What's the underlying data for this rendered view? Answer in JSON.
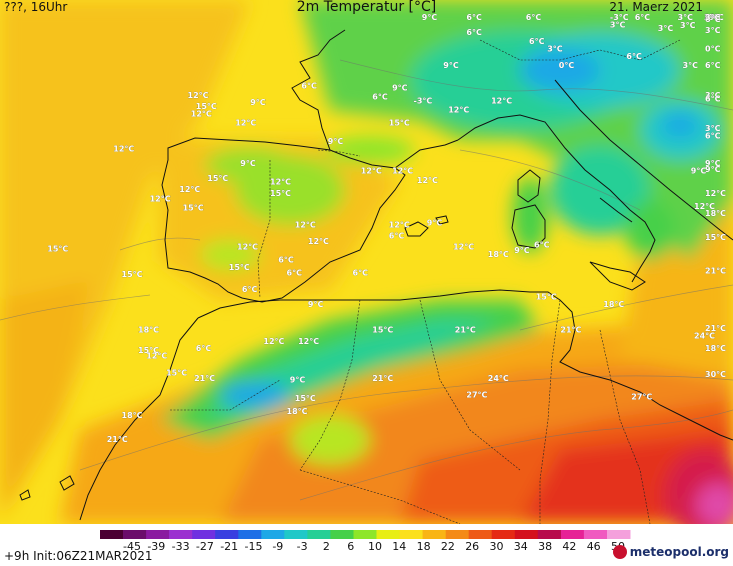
{
  "header": {
    "left": "???, 16Uhr",
    "title": "2m Temperatur [°C]",
    "date": "21. Maerz 2021",
    "corner_value": "3°C"
  },
  "labels": [
    {
      "t": "12°C",
      "x": -4.8,
      "y": 41.5
    },
    {
      "t": "12°C",
      "x": -9.5,
      "y": 39.6
    },
    {
      "t": "12°C",
      "x": -7.3,
      "y": 36.9
    },
    {
      "t": "15°C",
      "x": -9.0,
      "y": 32.8
    },
    {
      "t": "18°C",
      "x": -8.0,
      "y": 29.8
    },
    {
      "t": "15°C",
      "x": -8.0,
      "y": 28.7
    },
    {
      "t": "12°C",
      "x": -7.5,
      "y": 28.4
    },
    {
      "t": "15°C",
      "x": -6.3,
      "y": 27.5
    },
    {
      "t": "21°C",
      "x": -4.6,
      "y": 27.2
    },
    {
      "t": "18°C",
      "x": -9.0,
      "y": 25.2
    },
    {
      "t": "21°C",
      "x": -9.9,
      "y": 23.9
    },
    {
      "t": "12°C",
      "x": -5.0,
      "y": 42.5
    },
    {
      "t": "15°C",
      "x": -4.5,
      "y": 41.9
    },
    {
      "t": "9°C",
      "x": -1.2,
      "y": 42.1
    },
    {
      "t": "12°C",
      "x": -2.1,
      "y": 41.0
    },
    {
      "t": "9°C",
      "x": -1.8,
      "y": 38.8
    },
    {
      "t": "15°C",
      "x": -3.8,
      "y": 38.0
    },
    {
      "t": "12°C",
      "x": -5.5,
      "y": 37.4
    },
    {
      "t": "15°C",
      "x": -5.3,
      "y": 36.4
    },
    {
      "t": "12°C",
      "x": 0.0,
      "y": 37.8
    },
    {
      "t": "15°C",
      "x": 0.0,
      "y": 37.2
    },
    {
      "t": "12°C",
      "x": 1.5,
      "y": 35.5
    },
    {
      "t": "9°C",
      "x": 3.5,
      "y": 40.0
    },
    {
      "t": "12°C",
      "x": 5.5,
      "y": 38.4
    },
    {
      "t": "12°C",
      "x": 7.4,
      "y": 38.4
    },
    {
      "t": "12°C",
      "x": 8.9,
      "y": 37.9
    },
    {
      "t": "15°C",
      "x": 7.2,
      "y": 41.0
    },
    {
      "t": "6°C",
      "x": 1.9,
      "y": 43.0
    },
    {
      "t": "6°C",
      "x": 6.2,
      "y": 42.4
    },
    {
      "t": "-3°C",
      "x": 8.7,
      "y": 42.2
    },
    {
      "t": "9°C",
      "x": 7.4,
      "y": 42.9
    },
    {
      "t": "12°C",
      "x": 10.8,
      "y": 41.7
    },
    {
      "t": "9°C",
      "x": 10.5,
      "y": 44.1
    },
    {
      "t": "12°C",
      "x": 13.4,
      "y": 42.2
    },
    {
      "t": "9°C",
      "x": 9.2,
      "y": 49.5
    },
    {
      "t": "6°C",
      "x": 11.9,
      "y": 47.2
    },
    {
      "t": "6°C",
      "x": 15.5,
      "y": 49.7
    },
    {
      "t": "6°C",
      "x": 11.9,
      "y": 45.9
    },
    {
      "t": "6°C",
      "x": 15.7,
      "y": 45.4
    },
    {
      "t": "3°C",
      "x": 16.8,
      "y": 45.0
    },
    {
      "t": "0°C",
      "x": 17.5,
      "y": 44.1
    },
    {
      "t": "6°C",
      "x": 21.6,
      "y": 44.6
    },
    {
      "t": "-3°C",
      "x": 20.6,
      "y": 47.2
    },
    {
      "t": "3°C",
      "x": 20.6,
      "y": 46.3
    },
    {
      "t": "6°C",
      "x": 22.1,
      "y": 47.0
    },
    {
      "t": "3°C",
      "x": 23.5,
      "y": 46.1
    },
    {
      "t": "3°C",
      "x": 24.7,
      "y": 50.4
    },
    {
      "t": "3°C",
      "x": 26.3,
      "y": 50.4
    },
    {
      "t": "0°C",
      "x": 27.9,
      "y": 50.2
    },
    {
      "t": "0°C",
      "x": 27.9,
      "y": 48.2
    },
    {
      "t": "-3°C",
      "x": 29.3,
      "y": 48.2
    },
    {
      "t": "3°C",
      "x": 30.8,
      "y": 46.8
    },
    {
      "t": "3°C",
      "x": 29.8,
      "y": 46.0
    },
    {
      "t": "6°C",
      "x": 31.7,
      "y": 46.6
    },
    {
      "t": "0°C",
      "x": 32.0,
      "y": 45.0
    },
    {
      "t": "6°C",
      "x": 32.0,
      "y": 44.1
    },
    {
      "t": "3°C",
      "x": 34.5,
      "y": 42.5
    },
    {
      "t": "3°C",
      "x": 34.6,
      "y": 51.3
    },
    {
      "t": "3°C",
      "x": 25.0,
      "y": 44.1
    },
    {
      "t": "6°C",
      "x": 27.2,
      "y": 42.3
    },
    {
      "t": "3°C",
      "x": 28.9,
      "y": 40.7
    },
    {
      "t": "6°C",
      "x": 31.6,
      "y": 40.3
    },
    {
      "t": "9°C",
      "x": 25.5,
      "y": 38.4
    },
    {
      "t": "9°C",
      "x": 31.2,
      "y": 38.8
    },
    {
      "t": "9°C",
      "x": 32.2,
      "y": 38.5
    },
    {
      "t": "12°C",
      "x": 31.2,
      "y": 37.2
    },
    {
      "t": "12°C",
      "x": 25.7,
      "y": 36.5
    },
    {
      "t": "15°C",
      "x": 33.4,
      "y": 34.8
    },
    {
      "t": "12°C",
      "x": 7.2,
      "y": 35.5
    },
    {
      "t": "9°C",
      "x": 9.5,
      "y": 35.6
    },
    {
      "t": "6°C",
      "x": 7.2,
      "y": 34.9
    },
    {
      "t": "12°C",
      "x": 11.1,
      "y": 34.3
    },
    {
      "t": "18°C",
      "x": 13.2,
      "y": 33.9
    },
    {
      "t": "9°C",
      "x": 14.8,
      "y": 34.1
    },
    {
      "t": "6°C",
      "x": 16.0,
      "y": 34.4
    },
    {
      "t": "12°C",
      "x": 2.3,
      "y": 34.6
    },
    {
      "t": "6°C",
      "x": 0.5,
      "y": 33.6
    },
    {
      "t": "6°C",
      "x": 1.0,
      "y": 32.9
    },
    {
      "t": "6°C",
      "x": 5.0,
      "y": 32.9
    },
    {
      "t": "12°C",
      "x": -2.0,
      "y": 34.3
    },
    {
      "t": "15°C",
      "x": -2.5,
      "y": 33.2
    },
    {
      "t": "6°C",
      "x": -1.7,
      "y": 32.0
    },
    {
      "t": "9°C",
      "x": 2.3,
      "y": 31.2
    },
    {
      "t": "15°C",
      "x": 6.2,
      "y": 29.8
    },
    {
      "t": "12°C",
      "x": 1.7,
      "y": 29.2
    },
    {
      "t": "6°C",
      "x": -4.5,
      "y": 28.8
    },
    {
      "t": "12°C",
      "x": -0.4,
      "y": 29.2
    },
    {
      "t": "21°C",
      "x": 11.2,
      "y": 29.8
    },
    {
      "t": "21°C",
      "x": 17.6,
      "y": 29.8
    },
    {
      "t": "15°C",
      "x": 16.1,
      "y": 31.6
    },
    {
      "t": "18°C",
      "x": 20.2,
      "y": 31.2
    },
    {
      "t": "9°C",
      "x": 1.2,
      "y": 27.1
    },
    {
      "t": "15°C",
      "x": 1.5,
      "y": 26.1
    },
    {
      "t": "18°C",
      "x": 1.0,
      "y": 25.4
    },
    {
      "t": "21°C",
      "x": 6.2,
      "y": 27.2
    },
    {
      "t": "24°C",
      "x": 13.2,
      "y": 27.2
    },
    {
      "t": "27°C",
      "x": 11.9,
      "y": 26.3
    },
    {
      "t": "27°C",
      "x": 21.9,
      "y": 26.2
    },
    {
      "t": "21°C",
      "x": 26.4,
      "y": 29.9
    },
    {
      "t": "24°C",
      "x": 25.7,
      "y": 29.5
    },
    {
      "t": "18°C",
      "x": 29.6,
      "y": 28.8
    },
    {
      "t": "30°C",
      "x": 27.5,
      "y": 27.4
    },
    {
      "t": "21°C",
      "x": 33.8,
      "y": 33.0
    },
    {
      "t": "18°C",
      "x": 33.8,
      "y": 36.1
    },
    {
      "t": "15°C",
      "x": -13.5,
      "y": 34.2
    }
  ],
  "legend": {
    "ticks": [
      "-45",
      "-39",
      "-33",
      "-27",
      "-21",
      "-15",
      "-9",
      "-3",
      "2",
      "6",
      "10",
      "14",
      "18",
      "22",
      "26",
      "30",
      "34",
      "38",
      "42",
      "46",
      "50"
    ],
    "colors": [
      "#4b0033",
      "#6b0d6b",
      "#8a1aa0",
      "#9b30d0",
      "#7030e0",
      "#3a3fe0",
      "#1e6fe6",
      "#1ea8e6",
      "#20c8c8",
      "#25cf96",
      "#46d04a",
      "#8ee62a",
      "#e8ee14",
      "#fbe01c",
      "#f9b515",
      "#f48a16",
      "#ee5a16",
      "#e52a14",
      "#d4101d",
      "#b80a4c",
      "#e62296",
      "#f05ac0",
      "#f4a0dc"
    ]
  },
  "footer": {
    "run": "+9h  Init:06Z21MAR2021",
    "brand": "meteopool.org"
  }
}
